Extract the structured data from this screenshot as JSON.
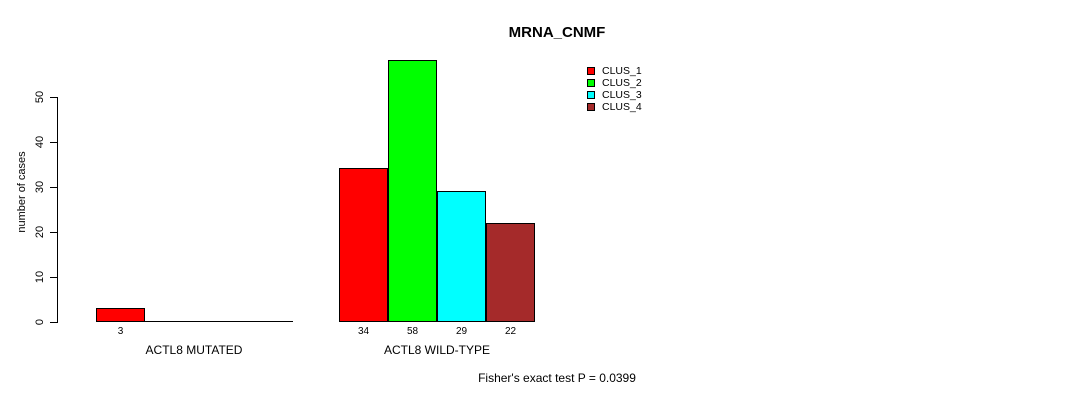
{
  "chart_data": {
    "type": "bar",
    "title": "MRNA_CNMF",
    "ylabel": "number of cases",
    "xlabel": "",
    "annotation": "Fisher's exact test P = 0.0399",
    "categories": [
      "ACTL8 MUTATED",
      "ACTL8 WILD-TYPE"
    ],
    "series": [
      {
        "name": "CLUS_1",
        "color": "#ff0000",
        "values": [
          3,
          34
        ]
      },
      {
        "name": "CLUS_2",
        "color": "#00ff00",
        "values": [
          0,
          58
        ]
      },
      {
        "name": "CLUS_3",
        "color": "#00ffff",
        "values": [
          0,
          29
        ]
      },
      {
        "name": "CLUS_4",
        "color": "#a52a2a",
        "values": [
          0,
          22
        ]
      }
    ],
    "bar_value_labels_shown": [
      [
        3
      ],
      [
        34,
        58,
        29,
        22
      ]
    ],
    "yticks": [
      0,
      10,
      20,
      30,
      40,
      50
    ],
    "ylim": [
      0,
      50
    ],
    "grid": false,
    "legend_position": "top-right",
    "axis_color": "#000000",
    "text_color": "#000000",
    "background_color": "#ffffff"
  }
}
